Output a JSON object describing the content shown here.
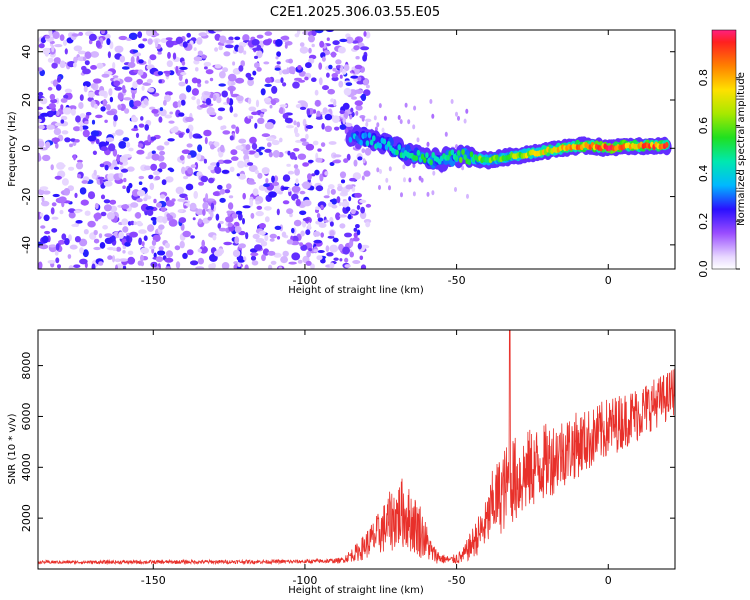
{
  "title": "C2E1.2025.306.03.55.E05",
  "chart_data": [
    {
      "type": "heatmap",
      "name": "spectrogram",
      "xlabel": "Height of straight line (km)",
      "ylabel": "Frequency (Hz)",
      "xlim": [
        -188,
        22
      ],
      "ylim": [
        -50,
        49
      ],
      "xticks": [
        -150,
        -100,
        -50,
        0
      ],
      "yticks": [
        -40,
        -20,
        0,
        20,
        40
      ],
      "ridge": {
        "description": "dominant spectral ridge (frequency in Hz vs height in km)",
        "x": [
          -85,
          -80,
          -75,
          -70,
          -65,
          -60,
          -55,
          -50,
          -45,
          -40,
          -35,
          -30,
          -25,
          -20,
          -15,
          -10,
          -5,
          0,
          5,
          10,
          15,
          20
        ],
        "y": [
          5,
          4,
          2,
          0,
          -3,
          -4,
          -5,
          -3,
          -4,
          -5,
          -4,
          -3,
          -2,
          -1,
          0,
          1,
          1,
          0,
          1,
          1,
          1,
          1
        ],
        "amplitude": [
          0.35,
          0.4,
          0.42,
          0.45,
          0.5,
          0.5,
          0.45,
          0.55,
          0.6,
          0.6,
          0.62,
          0.65,
          0.7,
          0.75,
          0.8,
          0.85,
          0.9,
          0.95,
          0.9,
          0.85,
          0.9,
          0.88
        ]
      },
      "noise_region_x": [
        -188,
        -85
      ],
      "colorbar": {
        "label": "Normalized spectral amplitude",
        "range": [
          0.0,
          1.0
        ],
        "ticks": [
          0.0,
          0.2,
          0.4,
          0.6,
          0.8
        ],
        "tick_labels": [
          "0.0",
          "0.2",
          "0.4",
          "0.6",
          "0.8"
        ]
      }
    },
    {
      "type": "line",
      "name": "snr",
      "xlabel": "Height of straight line (km)",
      "ylabel": "SNR (10 * v/v)",
      "xlim": [
        -188,
        22
      ],
      "ylim": [
        0,
        9400
      ],
      "xticks": [
        -150,
        -100,
        -50,
        0
      ],
      "yticks": [
        2000,
        4000,
        6000,
        8000
      ],
      "color": "#e8302a",
      "envelope": {
        "x": [
          -188,
          -150,
          -100,
          -88,
          -82,
          -75,
          -72,
          -68,
          -65,
          -62,
          -58,
          -55,
          -52,
          -48,
          -45,
          -40,
          -38,
          -35,
          -33,
          -32,
          -30,
          -25,
          -20,
          -15,
          -10,
          -5,
          0,
          5,
          10,
          15,
          20,
          22
        ],
        "base": [
          250,
          250,
          270,
          300,
          600,
          1200,
          1500,
          1800,
          1500,
          1200,
          500,
          350,
          300,
          400,
          800,
          1500,
          2200,
          2500,
          2800,
          3000,
          3000,
          3500,
          3800,
          4200,
          4500,
          4800,
          5200,
          5500,
          5800,
          6200,
          6500,
          6800
        ],
        "amp": [
          120,
          150,
          150,
          200,
          800,
          1800,
          2400,
          2800,
          2500,
          2200,
          800,
          400,
          300,
          600,
          1200,
          2000,
          2800,
          3200,
          3500,
          3500,
          3400,
          3200,
          3000,
          2800,
          2600,
          2400,
          2400,
          2200,
          2200,
          2000,
          2000,
          2000
        ]
      },
      "peak": {
        "x": -32.5,
        "y": 9400
      }
    }
  ]
}
